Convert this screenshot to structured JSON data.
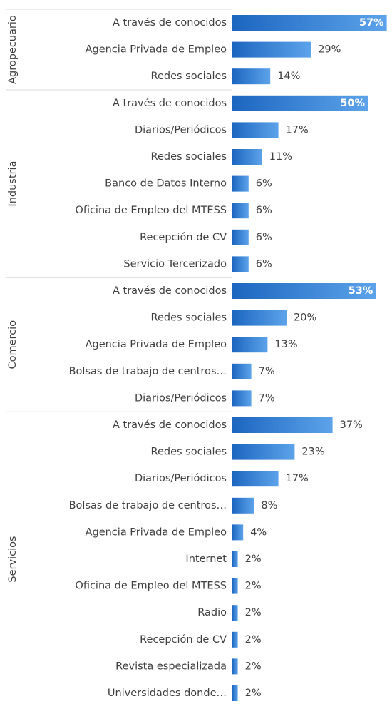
{
  "chart_data": {
    "type": "bar",
    "groups": [
      {
        "name": "Agropecuario",
        "categories": [
          "A través de conocidos",
          "Agencia Privada de Empleo",
          "Redes sociales"
        ],
        "values": [
          57,
          29,
          14
        ],
        "value_labels": [
          "57%",
          "29%",
          "14%"
        ]
      },
      {
        "name": "Industria",
        "categories": [
          "A través de conocidos",
          "Diarios/Periódicos",
          "Redes sociales",
          "Banco de Datos Interno",
          "Oficina de Empleo del MTESS",
          "Recepción de CV",
          "Servicio Tercerizado"
        ],
        "values": [
          50,
          17,
          11,
          6,
          6,
          6,
          6
        ],
        "value_labels": [
          "50%",
          "17%",
          "11%",
          "6%",
          "6%",
          "6%",
          "6%"
        ]
      },
      {
        "name": "Comercio",
        "categories": [
          "A través de conocidos",
          "Redes sociales",
          "Agencia Privada de Empleo",
          "Bolsas de trabajo de centros…",
          "Diarios/Periódicos"
        ],
        "values": [
          53,
          20,
          13,
          7,
          7
        ],
        "value_labels": [
          "53%",
          "20%",
          "13%",
          "7%",
          "7%"
        ]
      },
      {
        "name": "Servicios",
        "categories": [
          "A través de conocidos",
          "Redes sociales",
          "Diarios/Periódicos",
          "Bolsas de trabajo de centros…",
          "Agencia Privada de Empleo",
          "Internet",
          "Oficina de Empleo del MTESS",
          "Radio",
          "Recepción de CV",
          "Revista especializada",
          "Universidades donde…"
        ],
        "values": [
          37,
          23,
          17,
          8,
          4,
          2,
          2,
          2,
          2,
          2,
          2
        ],
        "value_labels": [
          "37%",
          "23%",
          "17%",
          "8%",
          "4%",
          "2%",
          "2%",
          "2%",
          "2%",
          "2%",
          "2%"
        ]
      }
    ],
    "color": "#2f7fd6"
  }
}
